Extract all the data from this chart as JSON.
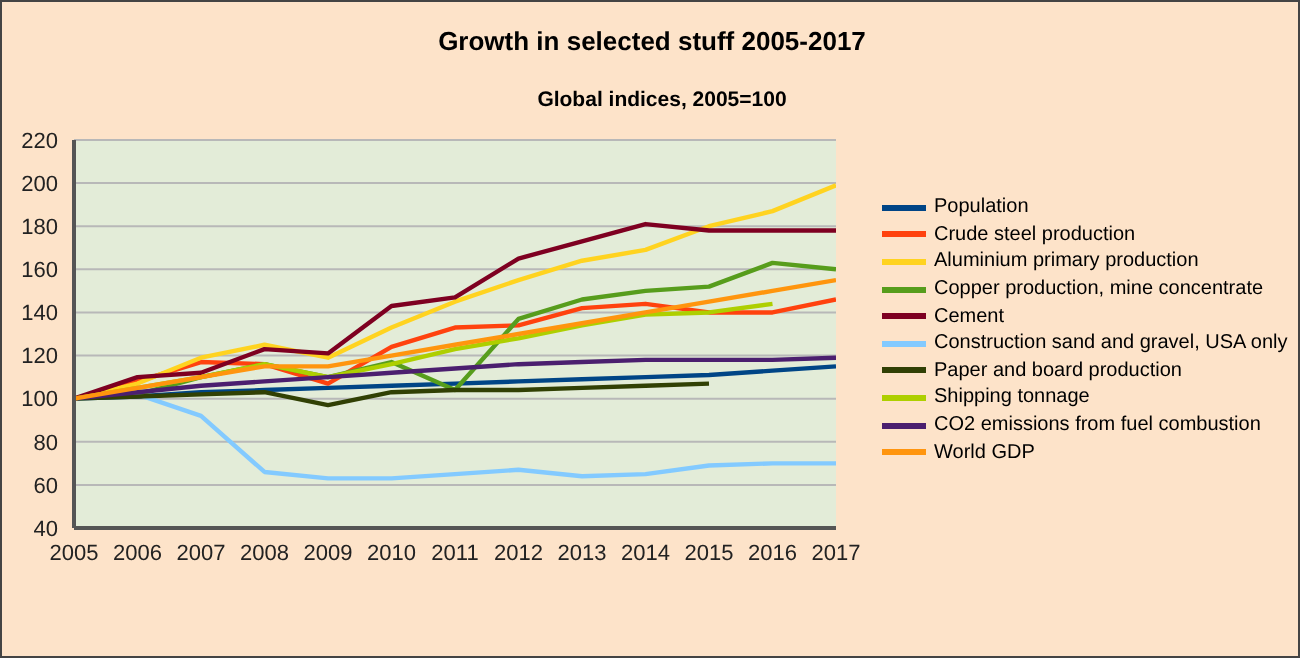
{
  "chart_data": {
    "type": "line",
    "title": "Growth in selected stuff 2005-2017",
    "subtitle": "Global indices, 2005=100",
    "x": [
      2005,
      2006,
      2007,
      2008,
      2009,
      2010,
      2011,
      2012,
      2013,
      2014,
      2015,
      2016,
      2017
    ],
    "xlim": [
      2005,
      2017
    ],
    "xticks": [
      2005,
      2006,
      2007,
      2008,
      2009,
      2010,
      2011,
      2012,
      2013,
      2014,
      2015,
      2016,
      2017
    ],
    "ylim": [
      40,
      220
    ],
    "yticks": [
      40,
      60,
      80,
      100,
      120,
      140,
      160,
      180,
      200,
      220
    ],
    "grid": "y",
    "legend": "right",
    "series": [
      {
        "name": "Population",
        "color": "#004586",
        "values": [
          100,
          101,
          103,
          104,
          105,
          106,
          107,
          108,
          109,
          110,
          111,
          113,
          115
        ]
      },
      {
        "name": "Crude steel production",
        "color": "#ff420e",
        "values": [
          100,
          108,
          117,
          116,
          107,
          124,
          133,
          134,
          142,
          144,
          140,
          140,
          146
        ]
      },
      {
        "name": "Aluminium primary production",
        "color": "#ffd320",
        "values": [
          100,
          107,
          119,
          125,
          119,
          133,
          145,
          155,
          164,
          169,
          180,
          187,
          199
        ]
      },
      {
        "name": "Copper production, mine concentrate",
        "color": "#579d1c",
        "values": [
          100,
          102,
          110,
          116,
          110,
          117,
          104,
          137,
          146,
          150,
          152,
          163,
          160
        ]
      },
      {
        "name": "Cement",
        "color": "#7e0021",
        "values": [
          100,
          110,
          112,
          123,
          121,
          143,
          147,
          165,
          173,
          181,
          178,
          178,
          178
        ]
      },
      {
        "name": "Construction sand and gravel, USA only",
        "color": "#83caff",
        "values": [
          100,
          102,
          92,
          66,
          63,
          63,
          65,
          67,
          64,
          65,
          69,
          70,
          70
        ]
      },
      {
        "name": "Paper and board production",
        "color": "#314004",
        "values": [
          100,
          101,
          102,
          103,
          97,
          103,
          104,
          104,
          105,
          106,
          107,
          null,
          null
        ]
      },
      {
        "name": "Shipping tonnage",
        "color": "#aecf00",
        "values": [
          100,
          105,
          110,
          116,
          110,
          116,
          123,
          128,
          134,
          139,
          140,
          144,
          null
        ]
      },
      {
        "name": "CO2 emissions from fuel combustion",
        "color": "#4b1f6f",
        "values": [
          100,
          103,
          106,
          108,
          110,
          112,
          114,
          116,
          117,
          118,
          118,
          118,
          119
        ]
      },
      {
        "name": "World GDP",
        "color": "#ff950e",
        "values": [
          100,
          105,
          110,
          115,
          115,
          120,
          125,
          130,
          135,
          140,
          145,
          150,
          155
        ]
      }
    ]
  }
}
